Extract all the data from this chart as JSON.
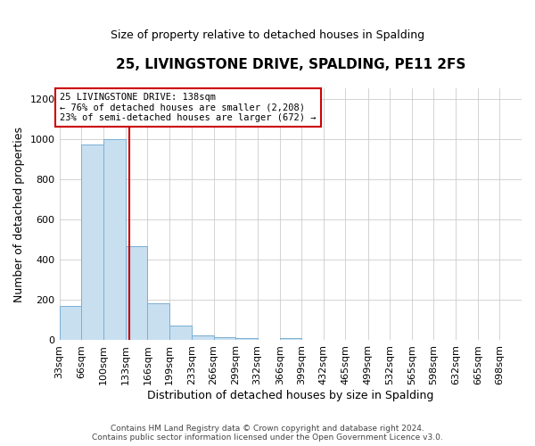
{
  "title": "25, LIVINGSTONE DRIVE, SPALDING, PE11 2FS",
  "subtitle": "Size of property relative to detached houses in Spalding",
  "xlabel": "Distribution of detached houses by size in Spalding",
  "ylabel": "Number of detached properties",
  "footer_line1": "Contains HM Land Registry data © Crown copyright and database right 2024.",
  "footer_line2": "Contains public sector information licensed under the Open Government Licence v3.0.",
  "annotation_line1": "25 LIVINGSTONE DRIVE: 138sqm",
  "annotation_line2": "← 76% of detached houses are smaller (2,208)",
  "annotation_line3": "23% of semi-detached houses are larger (672) →",
  "bin_edges": [
    33,
    66,
    100,
    133,
    166,
    199,
    233,
    266,
    299,
    332,
    366,
    399,
    432,
    465,
    499,
    532,
    565,
    598,
    632,
    665,
    698
  ],
  "bar_heights": [
    170,
    970,
    1000,
    465,
    185,
    75,
    25,
    15,
    10,
    0,
    10,
    0,
    0,
    0,
    0,
    0,
    0,
    0,
    0,
    0
  ],
  "bar_color": "#c8dff0",
  "bar_edgecolor": "#7aafd4",
  "property_line_x": 138,
  "property_line_color": "#cc0000",
  "annotation_box_edgecolor": "#cc0000",
  "ylim": [
    0,
    1250
  ],
  "yticks": [
    0,
    200,
    400,
    600,
    800,
    1000,
    1200
  ],
  "xlim_left": 33,
  "xlim_right": 731,
  "xtick_labels": [
    "33sqm",
    "66sqm",
    "100sqm",
    "133sqm",
    "166sqm",
    "199sqm",
    "233sqm",
    "266sqm",
    "299sqm",
    "332sqm",
    "366sqm",
    "399sqm",
    "432sqm",
    "465sqm",
    "499sqm",
    "532sqm",
    "565sqm",
    "598sqm",
    "632sqm",
    "665sqm",
    "698sqm"
  ],
  "xtick_positions": [
    33,
    66,
    100,
    133,
    166,
    199,
    233,
    266,
    299,
    332,
    366,
    399,
    432,
    465,
    499,
    532,
    565,
    598,
    632,
    665,
    698
  ],
  "grid_color": "#cccccc",
  "bg_color": "#ffffff"
}
